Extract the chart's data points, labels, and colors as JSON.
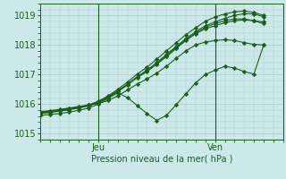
{
  "title": "",
  "xlabel": "Pression niveau de la mer( hPa )",
  "ylim": [
    1014.8,
    1019.4
  ],
  "xlim": [
    0,
    50
  ],
  "yticks": [
    1015,
    1016,
    1017,
    1018,
    1019
  ],
  "xtick_positions": [
    12,
    36
  ],
  "xtick_labels": [
    "Jeu",
    "Ven"
  ],
  "bg_color": "#cce8e8",
  "grid_color": "#aacccc",
  "line_color": "#1a5e1a",
  "marker": "D",
  "markersize": 2.2,
  "linewidth": 0.8,
  "series": [
    [
      0,
      1015.75,
      2,
      1015.78,
      4,
      1015.82,
      6,
      1015.87,
      8,
      1015.92,
      10,
      1015.97,
      12,
      1016.02,
      14,
      1016.12,
      16,
      1016.28,
      18,
      1016.48,
      20,
      1016.68,
      22,
      1016.85,
      24,
      1017.05,
      26,
      1017.28,
      28,
      1017.55,
      30,
      1017.8,
      32,
      1018.0,
      34,
      1018.1,
      36,
      1018.15,
      38,
      1018.18,
      40,
      1018.15,
      42,
      1018.08,
      44,
      1018.02,
      46,
      1018.0
    ],
    [
      0,
      1015.68,
      2,
      1015.72,
      4,
      1015.76,
      6,
      1015.81,
      8,
      1015.87,
      10,
      1015.94,
      12,
      1016.05,
      14,
      1016.22,
      16,
      1016.42,
      18,
      1016.65,
      20,
      1016.9,
      22,
      1017.1,
      24,
      1017.35,
      26,
      1017.6,
      28,
      1017.88,
      30,
      1018.15,
      32,
      1018.38,
      34,
      1018.55,
      36,
      1018.65,
      38,
      1018.75,
      40,
      1018.82,
      42,
      1018.85,
      44,
      1018.82,
      46,
      1018.78
    ],
    [
      0,
      1015.72,
      2,
      1015.75,
      4,
      1015.79,
      6,
      1015.84,
      8,
      1015.9,
      10,
      1015.97,
      12,
      1016.08,
      14,
      1016.25,
      16,
      1016.45,
      18,
      1016.68,
      20,
      1016.93,
      22,
      1017.15,
      24,
      1017.4,
      26,
      1017.68,
      28,
      1017.95,
      30,
      1018.22,
      32,
      1018.45,
      34,
      1018.65,
      36,
      1018.78,
      38,
      1018.9,
      40,
      1019.0,
      42,
      1019.06,
      44,
      1019.05,
      46,
      1018.95
    ],
    [
      0,
      1015.62,
      2,
      1015.65,
      4,
      1015.68,
      6,
      1015.73,
      8,
      1015.79,
      10,
      1015.87,
      12,
      1016.0,
      14,
      1016.2,
      16,
      1016.38,
      18,
      1016.22,
      20,
      1015.95,
      22,
      1015.68,
      24,
      1015.45,
      26,
      1015.62,
      28,
      1015.98,
      30,
      1016.35,
      32,
      1016.72,
      34,
      1017.0,
      36,
      1017.15,
      38,
      1017.28,
      40,
      1017.22,
      42,
      1017.1,
      44,
      1017.02,
      46,
      1018.0
    ],
    [
      0,
      1015.72,
      2,
      1015.75,
      4,
      1015.79,
      6,
      1015.84,
      8,
      1015.9,
      10,
      1015.97,
      12,
      1016.1,
      14,
      1016.28,
      16,
      1016.5,
      18,
      1016.75,
      20,
      1017.02,
      22,
      1017.25,
      24,
      1017.52,
      26,
      1017.8,
      28,
      1018.08,
      30,
      1018.35,
      32,
      1018.58,
      34,
      1018.8,
      36,
      1018.95,
      38,
      1019.05,
      40,
      1019.12,
      42,
      1019.15,
      44,
      1019.1,
      46,
      1019.0
    ],
    [
      0,
      1015.7,
      2,
      1015.73,
      4,
      1015.77,
      6,
      1015.82,
      8,
      1015.88,
      10,
      1015.95,
      12,
      1016.06,
      14,
      1016.24,
      16,
      1016.44,
      18,
      1016.67,
      20,
      1016.92,
      22,
      1017.13,
      24,
      1017.38,
      26,
      1017.65,
      28,
      1017.92,
      30,
      1018.18,
      32,
      1018.4,
      34,
      1018.6,
      36,
      1018.72,
      38,
      1018.82,
      40,
      1018.88,
      42,
      1018.88,
      44,
      1018.82,
      46,
      1018.72
    ]
  ]
}
